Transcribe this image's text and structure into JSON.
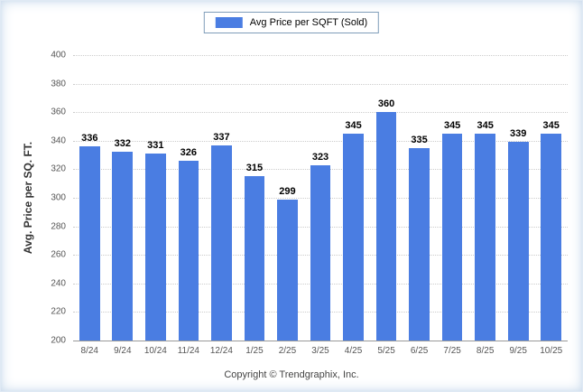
{
  "legend": {
    "label": "Avg Price per SQFT (Sold)",
    "swatch_color": "#4a7de2"
  },
  "footer": {
    "copyright": "Copyright © Trendgraphix, Inc."
  },
  "chart_data": {
    "type": "bar",
    "title": "",
    "xlabel": "",
    "ylabel": "Avg. Price per SQ. FT.",
    "categories": [
      "8/24",
      "9/24",
      "10/24",
      "11/24",
      "12/24",
      "1/25",
      "2/25",
      "3/25",
      "4/25",
      "5/25",
      "6/25",
      "7/25",
      "8/25",
      "9/25",
      "10/25"
    ],
    "series": [
      {
        "name": "Avg Price per SQFT (Sold)",
        "values": [
          336,
          332,
          331,
          326,
          337,
          315,
          299,
          323,
          345,
          360,
          335,
          345,
          345,
          339,
          345
        ]
      }
    ],
    "ylim": [
      200,
      400
    ],
    "yticks": [
      200,
      220,
      240,
      260,
      280,
      300,
      320,
      340,
      360,
      380,
      400
    ],
    "bar_color": "#4a7de2",
    "grid": "horizontal-dotted",
    "legend_position": "top-center",
    "value_labels": "above-bars"
  }
}
